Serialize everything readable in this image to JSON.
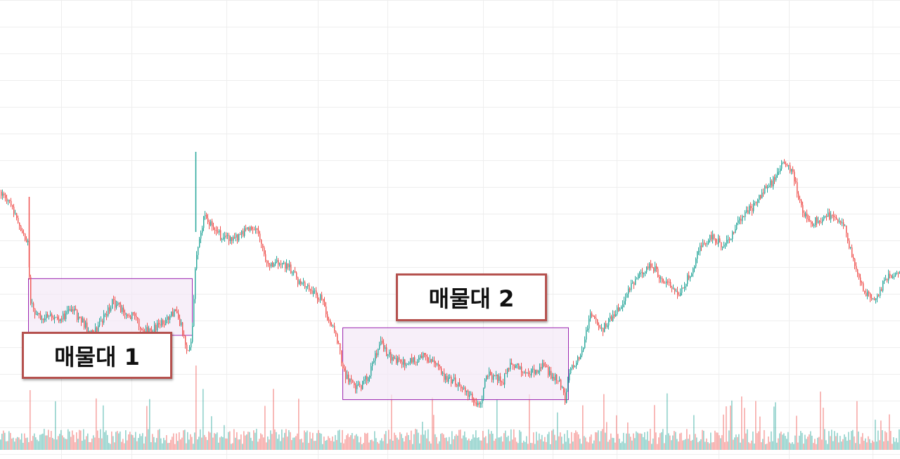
{
  "colors": {
    "up": "#26a69a",
    "down": "#ef5350",
    "zone_fill": "#f3e8f7",
    "zone_stroke": "#9c27b0",
    "label_border": "#b5514e",
    "grid": "#eeeeee"
  },
  "labels": {
    "zone1": "매물대 1",
    "zone2": "매물대 2"
  },
  "chart_data": {
    "type": "candlestick",
    "title": "",
    "xlabel": "",
    "ylabel": "",
    "grid": true,
    "ylim": [
      0,
      100
    ],
    "xlim": [
      0,
      1280
    ],
    "anchors": [
      [
        0,
        72
      ],
      [
        8,
        70
      ],
      [
        20,
        67
      ],
      [
        30,
        62
      ],
      [
        40,
        58
      ],
      [
        42,
        43
      ],
      [
        50,
        40
      ],
      [
        60,
        37
      ],
      [
        70,
        40
      ],
      [
        85,
        38
      ],
      [
        100,
        41
      ],
      [
        115,
        38
      ],
      [
        130,
        34
      ],
      [
        145,
        38
      ],
      [
        160,
        43
      ],
      [
        175,
        40
      ],
      [
        190,
        39
      ],
      [
        205,
        35
      ],
      [
        220,
        36
      ],
      [
        235,
        38
      ],
      [
        248,
        40
      ],
      [
        258,
        36
      ],
      [
        265,
        29
      ],
      [
        272,
        32
      ],
      [
        278,
        55
      ],
      [
        290,
        66
      ],
      [
        300,
        63
      ],
      [
        315,
        60
      ],
      [
        330,
        59
      ],
      [
        345,
        61
      ],
      [
        360,
        63
      ],
      [
        370,
        59
      ],
      [
        380,
        52
      ],
      [
        395,
        53
      ],
      [
        410,
        52
      ],
      [
        425,
        48
      ],
      [
        440,
        46
      ],
      [
        455,
        44
      ],
      [
        465,
        39
      ],
      [
        478,
        34
      ],
      [
        488,
        24
      ],
      [
        500,
        21
      ],
      [
        512,
        20
      ],
      [
        525,
        24
      ],
      [
        540,
        32
      ],
      [
        555,
        28
      ],
      [
        570,
        27
      ],
      [
        585,
        27
      ],
      [
        600,
        29
      ],
      [
        615,
        27
      ],
      [
        630,
        23
      ],
      [
        645,
        22
      ],
      [
        660,
        20
      ],
      [
        675,
        16
      ],
      [
        683,
        15
      ],
      [
        690,
        24
      ],
      [
        700,
        23
      ],
      [
        715,
        22
      ],
      [
        725,
        27
      ],
      [
        740,
        25
      ],
      [
        755,
        24
      ],
      [
        770,
        26
      ],
      [
        785,
        23
      ],
      [
        795,
        22
      ],
      [
        803,
        17
      ],
      [
        810,
        26
      ],
      [
        825,
        28
      ],
      [
        840,
        40
      ],
      [
        855,
        35
      ],
      [
        870,
        39
      ],
      [
        885,
        42
      ],
      [
        895,
        47
      ],
      [
        910,
        50
      ],
      [
        925,
        53
      ],
      [
        940,
        49
      ],
      [
        955,
        47
      ],
      [
        965,
        44
      ],
      [
        980,
        50
      ],
      [
        995,
        57
      ],
      [
        1010,
        60
      ],
      [
        1025,
        58
      ],
      [
        1040,
        60
      ],
      [
        1055,
        66
      ],
      [
        1070,
        68
      ],
      [
        1085,
        72
      ],
      [
        1100,
        75
      ],
      [
        1115,
        80
      ],
      [
        1128,
        76
      ],
      [
        1140,
        67
      ],
      [
        1155,
        64
      ],
      [
        1170,
        65
      ],
      [
        1185,
        66
      ],
      [
        1200,
        63
      ],
      [
        1215,
        52
      ],
      [
        1230,
        45
      ],
      [
        1245,
        44
      ],
      [
        1260,
        49
      ],
      [
        1280,
        52
      ]
    ],
    "zones": [
      {
        "x0": 40,
        "x1": 273,
        "y_low": 34,
        "y_high": 49
      },
      {
        "x0": 487,
        "x1": 808,
        "y_low": 17,
        "y_high": 36
      }
    ]
  }
}
